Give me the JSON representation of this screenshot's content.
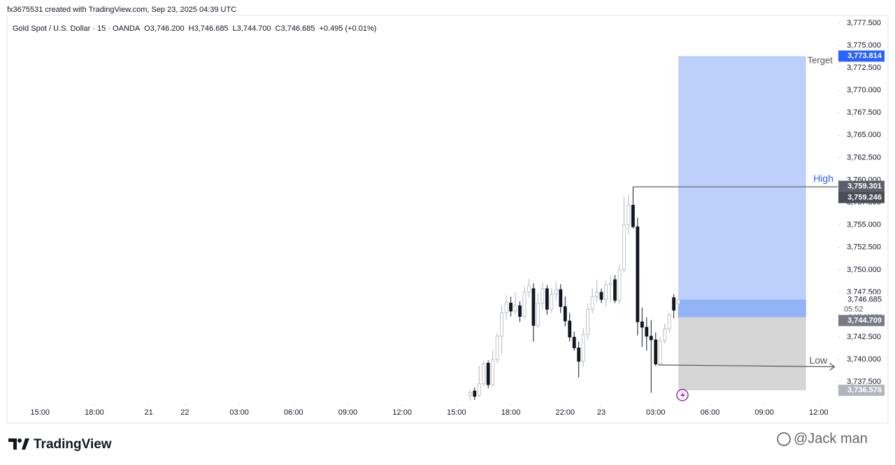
{
  "header": "fx3675531 created with TradingView.com, Sep 23, 2025 04:39 UTC",
  "chart_data": {
    "type": "candlestick",
    "legend": {
      "symbol": "Gold Spot / U.S. Dollar · 15 · OANDA",
      "ohlc": [
        "O3,746.200",
        "H3,746.685",
        "L3,744.700",
        "C3,746.685"
      ],
      "change": "+0.495 (+0.01%)"
    },
    "x": [
      95,
      96,
      97,
      98,
      99,
      100,
      101,
      102,
      103,
      104,
      105,
      106,
      107,
      108,
      109,
      110,
      111,
      112,
      113,
      114,
      115,
      116,
      117,
      118,
      119,
      120,
      121,
      122,
      123,
      124,
      125,
      126,
      127,
      128,
      129,
      130,
      131,
      132,
      133,
      134,
      135,
      136,
      137,
      138,
      139,
      140,
      141
    ],
    "open": [
      3736.0,
      3736.5,
      3736.0,
      3737.3,
      3739.6,
      3737.2,
      3740.0,
      3742.6,
      3745.2,
      3746.3,
      3745.4,
      3746.0,
      3744.8,
      3747.5,
      3747.9,
      3743.8,
      3746.3,
      3747.9,
      3745.6,
      3747.3,
      3747.8,
      3745.9,
      3744.3,
      3742.5,
      3741.3,
      3739.8,
      3742.8,
      3745.6,
      3747.0,
      3747.5,
      3746.7,
      3748.3,
      3748.9,
      3746.6,
      3750.0,
      3755.0,
      3757.2,
      3754.8,
      3744.2,
      3743.6,
      3742.6,
      3742.2,
      3739.5,
      3742.1,
      3743.4,
      3746.9,
      3746.2
    ],
    "high": [
      3736.6,
      3736.9,
      3739.3,
      3739.8,
      3739.9,
      3741.0,
      3743.0,
      3746.0,
      3747.2,
      3747.0,
      3747.5,
      3746.5,
      3748.1,
      3749.0,
      3748.5,
      3747.4,
      3748.6,
      3748.3,
      3748.0,
      3748.7,
      3748.4,
      3747.0,
      3745.2,
      3743.1,
      3742.0,
      3743.5,
      3746.3,
      3748.0,
      3748.9,
      3747.9,
      3748.8,
      3749.3,
      3749.4,
      3750.6,
      3758.2,
      3758.4,
      3759.246,
      3755.8,
      3745.8,
      3744.7,
      3744.4,
      3743.0,
      3742.5,
      3744.0,
      3745.2,
      3747.3,
      3746.685
    ],
    "low": [
      3735.4,
      3735.5,
      3735.8,
      3737.0,
      3736.8,
      3737.0,
      3739.6,
      3740.6,
      3744.4,
      3744.8,
      3745.0,
      3744.2,
      3744.5,
      3746.9,
      3742.0,
      3743.5,
      3745.6,
      3745.0,
      3745.2,
      3746.6,
      3745.2,
      3743.7,
      3742.0,
      3741.0,
      3738.0,
      3739.2,
      3742.2,
      3745.1,
      3746.4,
      3746.3,
      3745.9,
      3746.4,
      3746.3,
      3746.2,
      3749.7,
      3754.0,
      3754.6,
      3742.7,
      3741.4,
      3741.0,
      3736.3,
      3739.3,
      3739.4,
      3741.8,
      3743.0,
      3744.6,
      3744.7
    ],
    "close": [
      3736.3,
      3735.9,
      3737.3,
      3739.5,
      3737.2,
      3740.0,
      3742.6,
      3745.2,
      3746.4,
      3745.4,
      3746.0,
      3744.8,
      3747.5,
      3748.2,
      3743.8,
      3746.3,
      3747.9,
      3745.6,
      3747.3,
      3747.8,
      3745.9,
      3744.3,
      3742.5,
      3741.3,
      3739.8,
      3742.8,
      3745.6,
      3747.0,
      3747.5,
      3746.7,
      3748.3,
      3748.5,
      3746.6,
      3750.0,
      3755.0,
      3757.2,
      3754.8,
      3744.2,
      3743.6,
      3742.6,
      3742.2,
      3739.5,
      3742.1,
      3743.4,
      3745.0,
      3745.5,
      3746.685
    ],
    "up_color": "#ffffff",
    "up_border": "#b2b5be",
    "down_color": "#131722",
    "xlim": [
      -7.3,
      176.2
    ],
    "xticks": [
      {
        "value": 0,
        "label": "15:00"
      },
      {
        "value": 12,
        "label": "18:00"
      },
      {
        "value": 24,
        "label": "21"
      },
      {
        "value": 32,
        "label": "22"
      },
      {
        "value": 44,
        "label": "03:00"
      },
      {
        "value": 56,
        "label": "06:00"
      },
      {
        "value": 68,
        "label": "09:00"
      },
      {
        "value": 80,
        "label": "12:00"
      },
      {
        "value": 92,
        "label": "15:00"
      },
      {
        "value": 104,
        "label": "18:00"
      },
      {
        "value": 116,
        "label": "22:00"
      },
      {
        "value": 124,
        "label": "23"
      },
      {
        "value": 136,
        "label": "03:00"
      },
      {
        "value": 148,
        "label": "06:00"
      },
      {
        "value": 160,
        "label": "09:00"
      },
      {
        "value": 172,
        "label": "12:00"
      }
    ],
    "ylim": [
      3735.03,
      3778.35
    ],
    "yticks": [
      {
        "value": 3737.5,
        "label": "3,737.500"
      },
      {
        "value": 3740,
        "label": "3,740.000"
      },
      {
        "value": 3742.5,
        "label": "3,742.500"
      },
      {
        "value": 3745,
        "label": "3,745.000"
      },
      {
        "value": 3747.5,
        "label": "3,747.500"
      },
      {
        "value": 3750,
        "label": "3,750.000"
      },
      {
        "value": 3752.5,
        "label": "3,752.500"
      },
      {
        "value": 3755,
        "label": "3,755.000"
      },
      {
        "value": 3757.5,
        "label": "3,757.500"
      },
      {
        "value": 3760,
        "label": "3,760.000"
      },
      {
        "value": 3762.5,
        "label": "3,762.500"
      },
      {
        "value": 3765,
        "label": "3,765.000"
      },
      {
        "value": 3767.5,
        "label": "3,767.500"
      },
      {
        "value": 3770,
        "label": "3,770.000"
      },
      {
        "value": 3772.5,
        "label": "3,772.500"
      },
      {
        "value": 3775,
        "label": "3,775.000"
      },
      {
        "value": 3777.5,
        "label": "3,777.500"
      }
    ],
    "position": {
      "x_start": 141,
      "x_end": 169.2,
      "target": 3773.814,
      "entry": 3744.709,
      "stop": 3736.578,
      "current": 3746.685,
      "target_color": "#bcd0fb",
      "profit_color": "#93b3f8",
      "stop_color": "#d6d6d6"
    },
    "high_line": {
      "x": [
        131,
        176.2
      ],
      "y": 3759.246,
      "label": "High"
    },
    "low_arrow": {
      "x": [
        136.5,
        175.5
      ],
      "y": [
        3739.4,
        3739.2
      ],
      "label": "Low"
    },
    "target_label": "Terget",
    "price_labels": [
      {
        "value": 3773.814,
        "label": "3,773.814",
        "color": "#2962ff"
      },
      {
        "value": 3759.301,
        "label": "3,759.301",
        "color": "#5d606b"
      },
      {
        "value": 3759.246,
        "label": "3,759.246",
        "color": "#4a4d57"
      },
      {
        "value": 3746.685,
        "label": "3,746.685",
        "color": "#ffffff"
      },
      {
        "value": 3744.709,
        "label": "3,744.709",
        "color": "#787b86"
      },
      {
        "value": 3736.578,
        "label": "3,736.578",
        "color": "#b2b5be"
      }
    ],
    "countdown": "05:52"
  },
  "footer": {
    "logo": "TradingView",
    "watermark": "@Jack man"
  }
}
